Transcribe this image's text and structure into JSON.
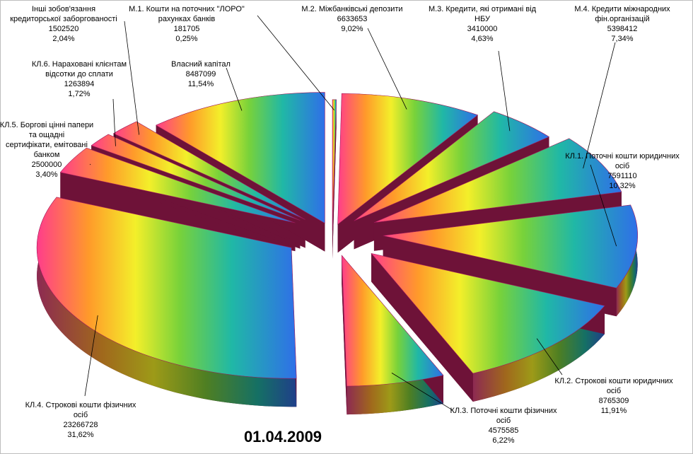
{
  "chart_data": {
    "type": "pie",
    "title": "01.04.2009",
    "style": "exploded 3D pie, rainbow gradient fill, maroon sides",
    "colors": {
      "side": "#6e1238",
      "top_edge": "#a0195a"
    },
    "slices": [
      {
        "name": "М.1. Кошти на поточних \"ЛОРО\" рахунках банків",
        "lines": [
          "М.1. Кошти на поточних \"ЛОРО\"",
          "рахунках банків"
        ],
        "value": 181705,
        "value_label": "181705",
        "percent_label": "0,25%"
      },
      {
        "name": "М.2. Міжбанківські депозити",
        "lines": [
          "М.2. Міжбанківські депозити"
        ],
        "value": 6633653,
        "value_label": "6633653",
        "percent_label": "9,02%"
      },
      {
        "name": "М.3. Кредити, які отримані від НБУ",
        "lines": [
          "М.3. Кредити, які отримані від",
          "НБУ"
        ],
        "value": 3410000,
        "value_label": "3410000",
        "percent_label": "4,63%"
      },
      {
        "name": "М.4. Кредити міжнародних фін.організацій",
        "lines": [
          "М.4. Кредити міжнародних",
          "фін.організацій"
        ],
        "value": 5398412,
        "value_label": "5398412",
        "percent_label": "7,34%"
      },
      {
        "name": "КЛ.1. Поточні кошти юридичних осіб",
        "lines": [
          "КЛ.1. Поточні кошти юридичних",
          "осіб"
        ],
        "value": 7591110,
        "value_label": "7591110",
        "percent_label": "10,32%"
      },
      {
        "name": "КЛ.2. Строкові кошти юридичних осіб",
        "lines": [
          "КЛ.2. Строкові кошти юридичних",
          "осіб"
        ],
        "value": 8765309,
        "value_label": "8765309",
        "percent_label": "11,91%"
      },
      {
        "name": "КЛ.3. Поточні кошти фізичних осіб",
        "lines": [
          "КЛ.3. Поточні кошти фізичних",
          "осіб"
        ],
        "value": 4575585,
        "value_label": "4575585",
        "percent_label": "6,22%"
      },
      {
        "name": "КЛ.4. Строкові кошти фізичних осіб",
        "lines": [
          "КЛ.4. Строкові кошти фізичних",
          "осіб"
        ],
        "value": 23266728,
        "value_label": "23266728",
        "percent_label": "31,62%"
      },
      {
        "name": "КЛ.5. Боргові цінні папери та ощадні сертифікати, емітовані банком",
        "lines": [
          "КЛ.5. Боргові цінні папери",
          "та ощадні",
          "сертифікати, емітовані",
          "банком"
        ],
        "value": 2500000,
        "value_label": "2500000",
        "percent_label": "3,40%"
      },
      {
        "name": "КЛ.6. Нараховані клієнтам відсотки до сплати",
        "lines": [
          "КЛ.6. Нараховані  клієнтам",
          "відсотки до сплати"
        ],
        "value": 1263894,
        "value_label": "1263894",
        "percent_label": "1,72%"
      },
      {
        "name": "Інші зобов'язання кредиторської заборгованості",
        "lines": [
          "Інші зобов'язання",
          "кредиторської заборгованості"
        ],
        "value": 1502520,
        "value_label": "1502520",
        "percent_label": "2,04%"
      },
      {
        "name": "Власний капітал",
        "lines": [
          "Власний капітал"
        ],
        "value": 8487099,
        "value_label": "8487099",
        "percent_label": "11,54%"
      }
    ]
  }
}
